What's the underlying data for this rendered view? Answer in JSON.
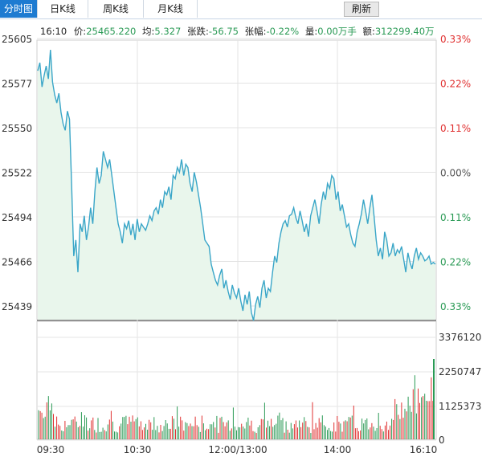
{
  "tabs": [
    {
      "label": "分时图",
      "active": true
    },
    {
      "label": "日K线",
      "active": false
    },
    {
      "label": "周K线",
      "active": false
    },
    {
      "label": "月K线",
      "active": false
    }
  ],
  "refresh_label": "刷新",
  "info": {
    "time": "16:10",
    "price_label": "价:",
    "price": "25465.220",
    "avg_label": "均:",
    "avg": "5.327",
    "change_label": "张跌:",
    "change": "-56.75",
    "pct_label": "张幅:",
    "pct": "-0.22%",
    "vol_label": "量:",
    "vol": "0.00万手",
    "amt_label": "额:",
    "amt": "312299.40万"
  },
  "colors": {
    "line": "#3aa6c8",
    "fill": "#e9f6ec",
    "up": "#e03030",
    "down": "#2a9a55",
    "tab_active": "#1e7bd1"
  },
  "chart_data": [
    {
      "type": "line",
      "y_ticks": [
        "25605",
        "25577",
        "25550",
        "25522",
        "25494",
        "25466",
        "25439"
      ],
      "y_right_ticks": [
        "0.33%",
        "0.22%",
        "0.11%",
        "0.00%",
        "0.11%",
        "0.22%",
        "0.33%"
      ],
      "ylim": [
        25439,
        25605
      ],
      "x_ticks": [
        "09:30",
        "10:30",
        "12:00/13:00",
        "14:00",
        "16:10"
      ],
      "series": [
        {
          "values": [
            25585,
            25590,
            25575,
            25582,
            25588,
            25580,
            25598,
            25578,
            25570,
            25565,
            25571,
            25559,
            25552,
            25548,
            25560,
            25555,
            25515,
            25470,
            25480,
            25460,
            25490,
            25485,
            25495,
            25480,
            25488,
            25500,
            25490,
            25510,
            25525,
            25515,
            25520,
            25535,
            25530,
            25525,
            25530,
            25520,
            25510,
            25500,
            25490,
            25485,
            25478,
            25490,
            25487,
            25492,
            25483,
            25490,
            25480,
            25493,
            25485,
            25490,
            25488,
            25486,
            25490,
            25495,
            25492,
            25498,
            25500,
            25496,
            25505,
            25500,
            25510,
            25508,
            25513,
            25505,
            25520,
            25518,
            25525,
            25522,
            25530,
            25520,
            25527,
            25525,
            25515,
            25510,
            25522,
            25516,
            25508,
            25500,
            25490,
            25480,
            25478,
            25476,
            25465,
            25460,
            25455,
            25452,
            25458,
            25462,
            25450,
            25455,
            25448,
            25443,
            25452,
            25447,
            25444,
            25450,
            25442,
            25436,
            25446,
            25440,
            25448,
            25435,
            25430,
            25440,
            25445,
            25438,
            25450,
            25455,
            25444,
            25450,
            25448,
            25460,
            25470,
            25466,
            25478,
            25485,
            25490,
            25492,
            25488,
            25495,
            25496,
            25500,
            25494,
            25490,
            25498,
            25492,
            25485,
            25490,
            25482,
            25495,
            25500,
            25505,
            25498,
            25490,
            25502,
            25510,
            25505,
            25515,
            25512,
            25520,
            25518,
            25505,
            25510,
            25498,
            25502,
            25495,
            25488,
            25490,
            25483,
            25478,
            25476,
            25485,
            25490,
            25496,
            25505,
            25498,
            25490,
            25500,
            25508,
            25495,
            25480,
            25470,
            25475,
            25468,
            25485,
            25480,
            25470,
            25472,
            25478,
            25470,
            25474,
            25472,
            25476,
            25468,
            25460,
            25472,
            25466,
            25462,
            25470,
            25475,
            25468,
            25472,
            25470,
            25467,
            25468,
            25470,
            25465,
            25466,
            25465
          ]
        }
      ]
    },
    {
      "type": "bar",
      "y_ticks": [
        "3376120",
        "2250747",
        "1125373",
        "0"
      ],
      "ylim": [
        0,
        3376120
      ]
    }
  ]
}
